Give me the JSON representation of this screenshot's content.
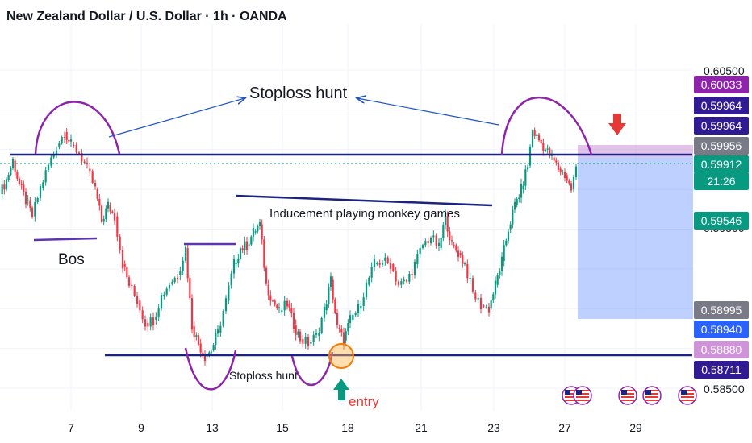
{
  "header": {
    "title": "New Zealand Dollar / U.S. Dollar · 1h · OANDA"
  },
  "chart_data": {
    "type": "candlestick",
    "symbol": "NZDUSD",
    "timeframe": "1h",
    "broker": "OANDA",
    "x_ticks": [
      "7",
      "9",
      "13",
      "15",
      "18",
      "21",
      "23",
      "27",
      "29"
    ],
    "y_ticks": [
      "0.60500",
      "0.58500"
    ],
    "ylim": [
      0.585,
      0.605
    ],
    "price_labels": [
      {
        "value": "0.60033",
        "color": "#8e24aa",
        "text_color": "#ffffff"
      },
      {
        "value": "0.59964",
        "color": "#311b92",
        "text_color": "#ffffff"
      },
      {
        "value": "0.59964",
        "color": "#311b92",
        "text_color": "#ffffff"
      },
      {
        "value": "0.59956",
        "color": "#787b86",
        "text_color": "#ffffff"
      },
      {
        "value": "0.59912",
        "color": "#089981",
        "text_color": "#ffffff"
      },
      {
        "value": "21:26",
        "color": "#089981",
        "text_color": "#ffffff"
      },
      {
        "value": "0.59546",
        "color": "#089981",
        "text_color": "#ffffff"
      },
      {
        "value": "0.58995",
        "color": "#787b86",
        "text_color": "#ffffff"
      },
      {
        "value": "0.58940",
        "color": "#2962ff",
        "text_color": "#ffffff"
      },
      {
        "value": "0.58880",
        "color": "#ce93d8",
        "text_color": "#ffffff"
      },
      {
        "value": "0.58711",
        "color": "#311b92",
        "text_color": "#ffffff"
      }
    ],
    "hidden_tick": "0.59500",
    "levels": {
      "resistance": 0.59964,
      "support": 0.58711,
      "current": 0.59912,
      "inducement_start": 0.5968,
      "inducement_end": 0.5962,
      "bos": 0.5942,
      "stop_top": 0.60033,
      "target": 0.58995
    },
    "annotations": {
      "stoploss_top": "Stoploss hunt",
      "stoploss_bottom": "Stoploss hunt",
      "bos": "Bos",
      "inducement": "Inducement playing monkey games",
      "entry": "entry"
    },
    "colors": {
      "up": "#089981",
      "down": "#f23645",
      "level_line": "#1a237e",
      "arc": "#8e24aa",
      "arrow": "#1e53c6",
      "stop_zone": "rgba(156,39,176,0.28)",
      "target_zone": "rgba(41,98,255,0.30)",
      "entry_circle": "#f57c00",
      "entry_arrow": "#089981",
      "short_arrow": "#e53935"
    },
    "event_icon": "us-flag-calendar-icon"
  }
}
